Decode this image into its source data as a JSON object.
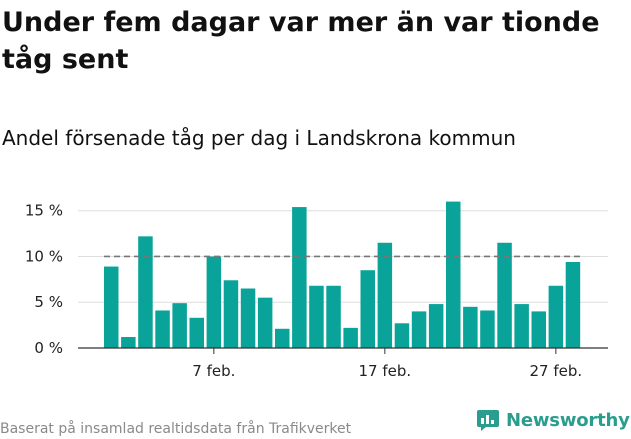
{
  "title": "Under fem dagar var mer än var tionde tåg sent",
  "subtitle": "Andel försenade tåg per dag i Landskrona kommun",
  "footer": {
    "source": "Baserat på insamlad realtidsdata från Trafikverket",
    "brand": "Newsworthy"
  },
  "colors": {
    "bar": "#0aa39a",
    "reference_line": "#777777",
    "grid": "#dddddd",
    "brand": "#2b9d8e"
  },
  "chart_data": {
    "type": "bar",
    "x": [
      "1 feb.",
      "2 feb.",
      "3 feb.",
      "4 feb.",
      "5 feb.",
      "6 feb.",
      "7 feb.",
      "8 feb.",
      "9 feb.",
      "10 feb.",
      "11 feb.",
      "12 feb.",
      "13 feb.",
      "14 feb.",
      "15 feb.",
      "16 feb.",
      "17 feb.",
      "18 feb.",
      "19 feb.",
      "20 feb.",
      "21 feb.",
      "22 feb.",
      "23 feb.",
      "24 feb.",
      "25 feb.",
      "26 feb.",
      "27 feb.",
      "28 feb."
    ],
    "values": [
      8.9,
      1.2,
      12.2,
      4.1,
      4.9,
      3.3,
      10.0,
      7.4,
      6.5,
      5.5,
      2.1,
      15.4,
      6.8,
      6.8,
      2.2,
      8.5,
      11.5,
      2.7,
      4.0,
      4.8,
      16.0,
      4.5,
      4.1,
      11.5,
      4.8,
      4.0,
      6.8,
      9.4
    ],
    "unit": "%",
    "ylim": [
      0,
      16.5
    ],
    "yticks": [
      0,
      5,
      10,
      15
    ],
    "ytick_labels": [
      "0 %",
      "5 %",
      "10 %",
      "15 %"
    ],
    "xticks": [
      "7 feb.",
      "17 feb.",
      "27 feb."
    ],
    "reference_line": {
      "value": 10,
      "style": "dashed"
    },
    "grid": true,
    "legend": "none"
  }
}
